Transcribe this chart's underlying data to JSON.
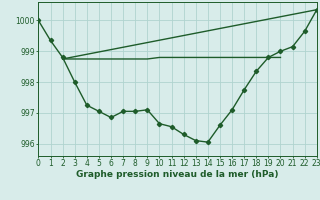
{
  "line1_x": [
    0,
    1,
    2,
    3,
    4,
    5,
    6,
    7,
    8,
    9,
    10,
    11,
    12,
    13,
    14,
    15,
    16,
    17,
    18,
    19,
    20,
    21,
    22,
    23
  ],
  "line1_y": [
    1000.0,
    999.35,
    998.8,
    998.0,
    997.25,
    997.05,
    996.85,
    997.05,
    997.05,
    997.1,
    996.65,
    996.55,
    996.3,
    996.1,
    996.05,
    996.6,
    997.1,
    997.75,
    998.35,
    998.8,
    999.0,
    999.15,
    999.65,
    1000.35
  ],
  "line2_x": [
    2,
    3,
    4,
    5,
    6,
    7,
    8,
    9,
    10,
    11,
    12,
    13,
    14,
    15,
    16,
    17,
    18,
    19,
    20
  ],
  "line2_y": [
    998.75,
    998.75,
    998.75,
    998.75,
    998.75,
    998.75,
    998.75,
    998.75,
    998.8,
    998.8,
    998.8,
    998.8,
    998.8,
    998.8,
    998.8,
    998.8,
    998.8,
    998.8,
    998.8
  ],
  "line3_x": [
    2,
    23
  ],
  "line3_y": [
    998.75,
    1000.35
  ],
  "bg_color": "#d8ecea",
  "grid_color": "#b0d4cf",
  "line_color": "#1e5c2a",
  "ylabel_vals": [
    996,
    997,
    998,
    999,
    1000
  ],
  "xlabel_vals": [
    0,
    1,
    2,
    3,
    4,
    5,
    6,
    7,
    8,
    9,
    10,
    11,
    12,
    13,
    14,
    15,
    16,
    17,
    18,
    19,
    20,
    21,
    22,
    23
  ],
  "xlim": [
    0,
    23
  ],
  "ylim": [
    995.6,
    1000.6
  ],
  "xlabel": "Graphe pression niveau de la mer (hPa)",
  "xlabel_fontsize": 6.5,
  "tick_fontsize": 5.5,
  "line_width": 1.0,
  "marker": "D",
  "marker_size": 2.2
}
